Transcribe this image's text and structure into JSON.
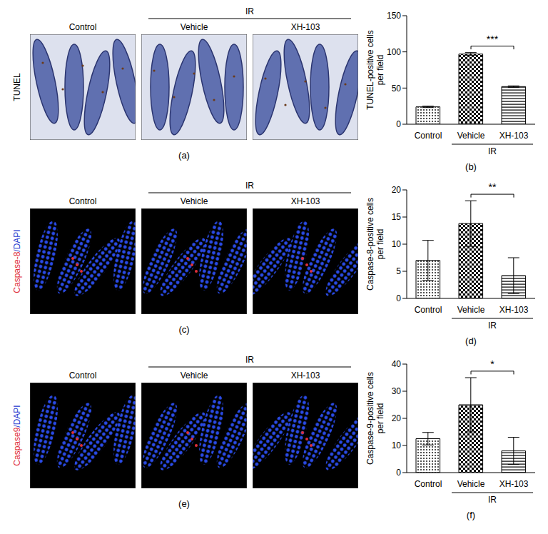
{
  "image_panels": [
    {
      "title": "(a)",
      "row_label": [
        {
          "text": "TUNEL",
          "color": "#000000"
        }
      ],
      "columns": [
        "Control",
        "Vehicle",
        "XH-103"
      ],
      "group": {
        "label": "IR",
        "columns": [
          "Vehicle",
          "XH-103"
        ]
      },
      "style": "brightfield"
    },
    {
      "title": "(c)",
      "row_label": [
        {
          "text": "Caspase-8",
          "color": "#e0303a"
        },
        {
          "text": "/DAPI",
          "color": "#2a3cd0"
        }
      ],
      "columns": [
        "Control",
        "Vehicle",
        "XH-103"
      ],
      "group": {
        "label": "IR",
        "columns": [
          "Vehicle",
          "XH-103"
        ]
      },
      "style": "fluorescence"
    },
    {
      "title": "(e)",
      "row_label": [
        {
          "text": "Caspase9",
          "color": "#e0303a"
        },
        {
          "text": "/DAPI",
          "color": "#2a3cd0"
        }
      ],
      "columns": [
        "Control",
        "Vehicle",
        "XH-103"
      ],
      "group": {
        "label": "IR",
        "columns": [
          "Vehicle",
          "XH-103"
        ]
      },
      "style": "fluorescence"
    }
  ],
  "chart_data": [
    {
      "type": "bar",
      "title": "(b)",
      "y_label": "TUNEL-positive cells per field",
      "categories": [
        "Control",
        "Vehicle",
        "XH-103"
      ],
      "values": [
        24,
        97,
        52
      ],
      "errors": [
        1,
        2,
        1
      ],
      "color": "#000000",
      "ylim": [
        0,
        150
      ],
      "yticks": [
        0,
        50,
        100,
        150
      ],
      "group": {
        "label": "IR",
        "categories": [
          "Vehicle",
          "XH-103"
        ]
      },
      "annotations": [
        {
          "text": "***",
          "from": "Vehicle",
          "to": "XH-103"
        }
      ]
    },
    {
      "type": "bar",
      "title": "(d)",
      "y_label": "Caspase-8-positive cells per field",
      "categories": [
        "Control",
        "Vehicle",
        "XH-103"
      ],
      "values": [
        7,
        13.8,
        4.2
      ],
      "errors": [
        3.7,
        4.2,
        3.3
      ],
      "color": "#000000",
      "ylim": [
        0,
        20
      ],
      "yticks": [
        0,
        5,
        10,
        15,
        20
      ],
      "group": {
        "label": "IR",
        "categories": [
          "Vehicle",
          "XH-103"
        ]
      },
      "annotations": [
        {
          "text": "**",
          "from": "Vehicle",
          "to": "XH-103"
        }
      ]
    },
    {
      "type": "bar",
      "title": "(f)",
      "y_label": "Caspase-9-positive cells per field",
      "categories": [
        "Control",
        "Vehicle",
        "XH-103"
      ],
      "values": [
        12.5,
        25,
        8
      ],
      "errors": [
        2.3,
        10,
        5
      ],
      "color": "#000000",
      "ylim": [
        0,
        40
      ],
      "yticks": [
        0,
        10,
        20,
        30,
        40
      ],
      "group": {
        "label": "IR",
        "categories": [
          "Vehicle",
          "XH-103"
        ]
      },
      "annotations": [
        {
          "text": "*",
          "from": "Vehicle",
          "to": "XH-103"
        }
      ]
    }
  ]
}
